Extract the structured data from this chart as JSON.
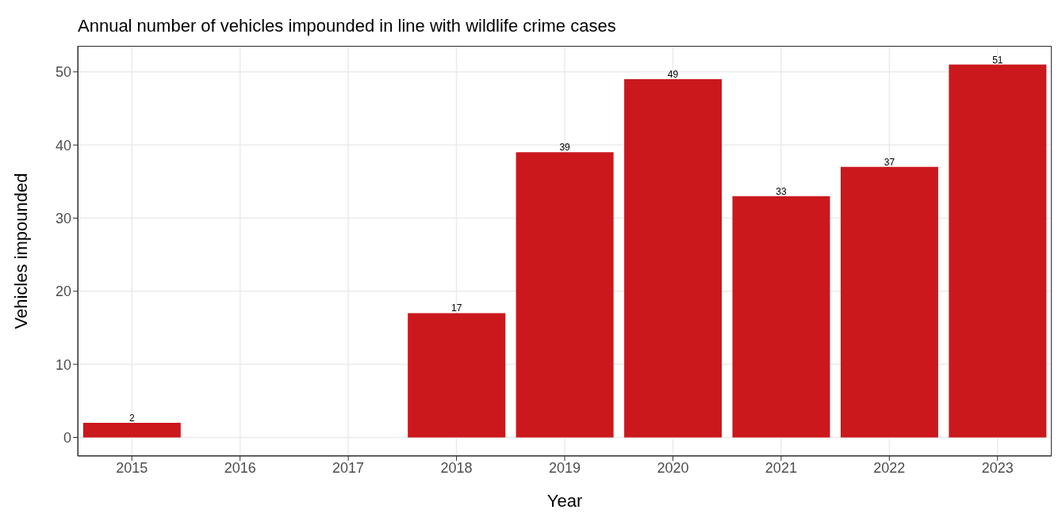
{
  "chart_data": {
    "type": "bar",
    "title": "Annual number of vehicles impounded in line with wildlife crime cases",
    "xlabel": "Year",
    "ylabel": "Vehicles impounded",
    "categories": [
      "2015",
      "2016",
      "2017",
      "2018",
      "2019",
      "2020",
      "2021",
      "2022",
      "2023"
    ],
    "values": [
      2,
      null,
      null,
      17,
      39,
      49,
      33,
      37,
      51
    ],
    "color": "#cb181d",
    "ylim": [
      -2.55,
      53.55
    ],
    "yticks": [
      0,
      10,
      20,
      30,
      40,
      50
    ],
    "grid": true,
    "data_labels": true
  }
}
